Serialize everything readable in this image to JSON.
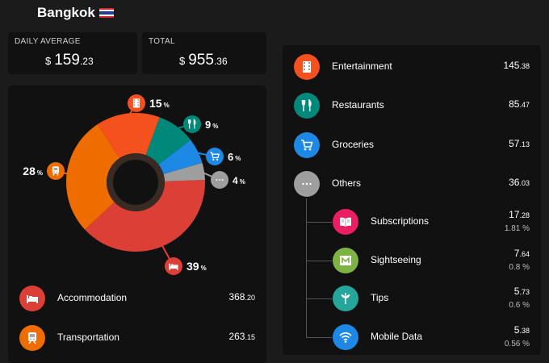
{
  "header": {
    "city": "Bangkok",
    "flag_icon": "thailand-flag-icon"
  },
  "stats": {
    "daily_average": {
      "label": "DAILY AVERAGE",
      "currency": "$",
      "int": "159",
      "dec": ".23"
    },
    "total": {
      "label": "TOTAL",
      "currency": "$",
      "int": "955",
      "dec": ".36"
    }
  },
  "chart_data": {
    "type": "pie",
    "title": "",
    "slices": [
      {
        "name": "Accommodation",
        "value": 39,
        "color": "#dc3f35",
        "icon": "bed-icon"
      },
      {
        "name": "Transportation",
        "value": 28,
        "color": "#ef6c00",
        "icon": "train-icon"
      },
      {
        "name": "Entertainment",
        "value": 15,
        "color": "#f4511e",
        "icon": "film-icon"
      },
      {
        "name": "Restaurants",
        "value": 9,
        "color": "#00897b",
        "icon": "fork-knife-icon"
      },
      {
        "name": "Groceries",
        "value": 6,
        "color": "#1e88e5",
        "icon": "cart-icon"
      },
      {
        "name": "Others",
        "value": 4,
        "color": "#9e9e9e",
        "icon": "more-icon"
      }
    ],
    "pct_symbol": "%"
  },
  "left_list": [
    {
      "label": "Accommodation",
      "int": "368",
      "dec": ".20",
      "color": "#dc3f35",
      "icon": "bed-icon"
    },
    {
      "label": "Transportation",
      "int": "263",
      "dec": ".15",
      "color": "#ef6c00",
      "icon": "train-icon"
    }
  ],
  "right_list": [
    {
      "label": "Entertainment",
      "int": "145",
      "dec": ".38",
      "color": "#f4511e",
      "icon": "film-icon"
    },
    {
      "label": "Restaurants",
      "int": "85",
      "dec": ".47",
      "color": "#00897b",
      "icon": "fork-knife-icon"
    },
    {
      "label": "Groceries",
      "int": "57",
      "dec": ".13",
      "color": "#1e88e5",
      "icon": "cart-icon"
    },
    {
      "label": "Others",
      "int": "36",
      "dec": ".03",
      "color": "#9e9e9e",
      "icon": "more-icon"
    }
  ],
  "others_sub": [
    {
      "label": "Subscriptions",
      "int": "17",
      "dec": ".28",
      "pct": "1.81 %",
      "color": "#e91e63",
      "icon": "book-icon"
    },
    {
      "label": "Sightseeing",
      "int": "7",
      "dec": ".64",
      "pct": "0.8 %",
      "color": "#7cb342",
      "icon": "map-icon"
    },
    {
      "label": "Tips",
      "int": "5",
      "dec": ".73",
      "pct": "0.6 %",
      "color": "#26a69a",
      "icon": "leaf-icon"
    },
    {
      "label": "Mobile Data",
      "int": "5",
      "dec": ".38",
      "pct": "0.56 %",
      "color": "#1e88e5",
      "icon": "wifi-icon"
    }
  ]
}
